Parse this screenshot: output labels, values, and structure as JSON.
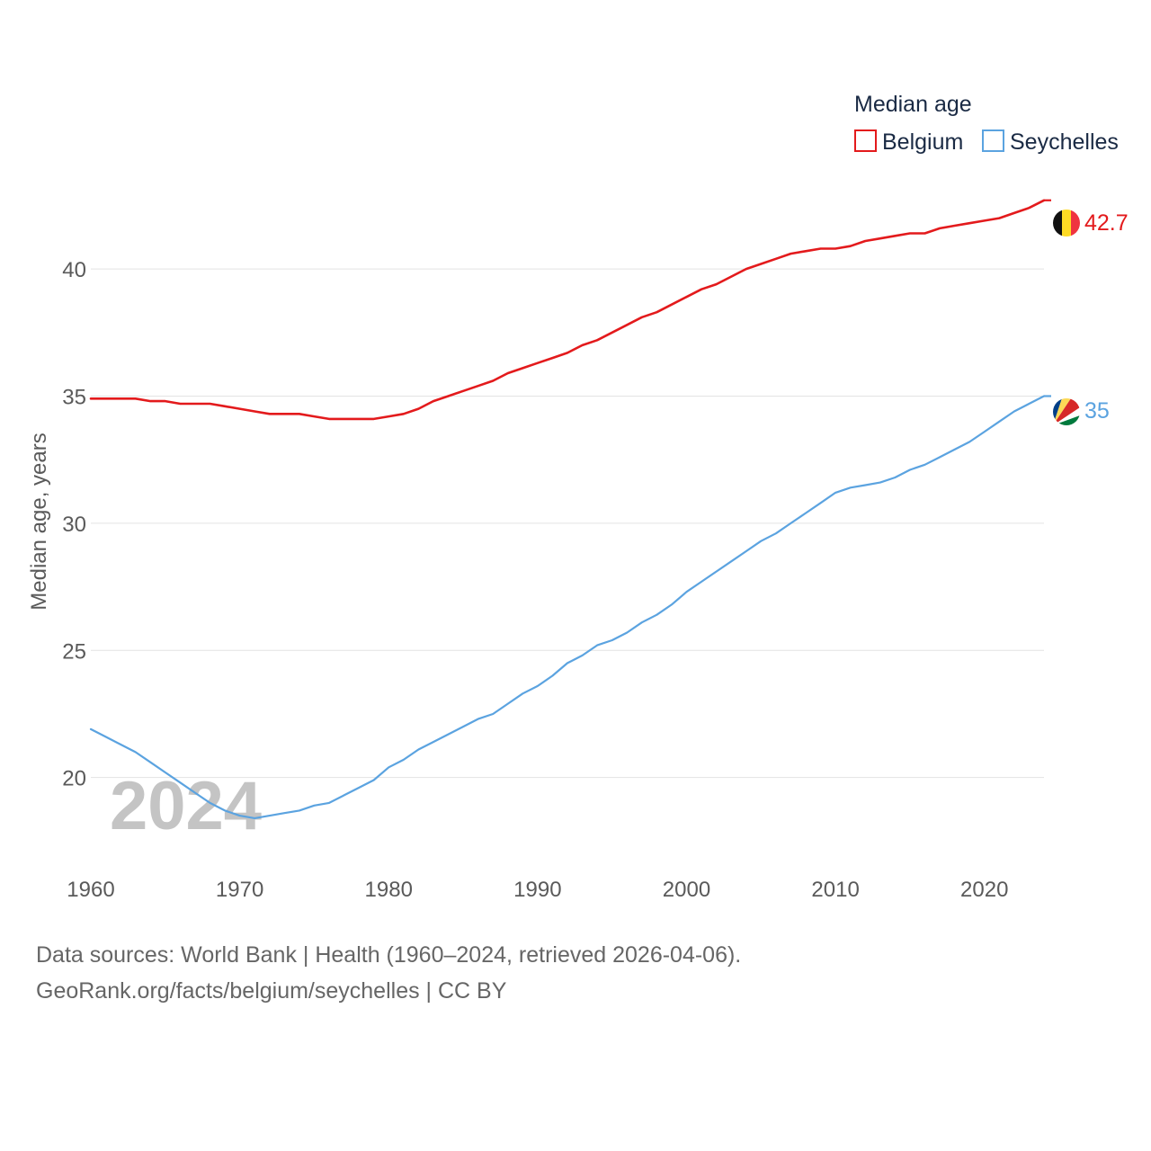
{
  "chart_data": {
    "type": "line",
    "title": "Median age",
    "ylabel": "Median age, years",
    "xlabel": "",
    "xlim": [
      1960,
      2024
    ],
    "ylim": [
      17.3,
      44
    ],
    "yticks": [
      20,
      25,
      30,
      35,
      40
    ],
    "xticks": [
      1960,
      1970,
      1980,
      1990,
      2000,
      2010,
      2020
    ],
    "grid": true,
    "legend_position": "top-right",
    "year_watermark": "2024",
    "x": [
      1960,
      1961,
      1962,
      1963,
      1964,
      1965,
      1966,
      1967,
      1968,
      1969,
      1970,
      1971,
      1972,
      1973,
      1974,
      1975,
      1976,
      1977,
      1978,
      1979,
      1980,
      1981,
      1982,
      1983,
      1984,
      1985,
      1986,
      1987,
      1988,
      1989,
      1990,
      1991,
      1992,
      1993,
      1994,
      1995,
      1996,
      1997,
      1998,
      1999,
      2000,
      2001,
      2002,
      2003,
      2004,
      2005,
      2006,
      2007,
      2008,
      2009,
      2010,
      2011,
      2012,
      2013,
      2014,
      2015,
      2016,
      2017,
      2018,
      2019,
      2020,
      2021,
      2022,
      2023,
      2024
    ],
    "series": [
      {
        "name": "Belgium",
        "color": "#e31a1c",
        "end_label": "42.7",
        "values": [
          34.9,
          34.9,
          34.9,
          34.9,
          34.8,
          34.8,
          34.7,
          34.7,
          34.7,
          34.6,
          34.5,
          34.4,
          34.3,
          34.3,
          34.3,
          34.2,
          34.1,
          34.1,
          34.1,
          34.1,
          34.2,
          34.3,
          34.5,
          34.8,
          35.0,
          35.2,
          35.4,
          35.6,
          35.9,
          36.1,
          36.3,
          36.5,
          36.7,
          37.0,
          37.2,
          37.5,
          37.8,
          38.1,
          38.3,
          38.6,
          38.9,
          39.2,
          39.4,
          39.7,
          40.0,
          40.2,
          40.4,
          40.6,
          40.7,
          40.8,
          40.8,
          40.9,
          41.1,
          41.2,
          41.3,
          41.4,
          41.4,
          41.6,
          41.7,
          41.8,
          41.9,
          42.0,
          42.2,
          42.4,
          42.7
        ]
      },
      {
        "name": "Seychelles",
        "color": "#5ba3e0",
        "end_label": "35",
        "values": [
          21.9,
          21.6,
          21.3,
          21.0,
          20.6,
          20.2,
          19.8,
          19.4,
          19.0,
          18.7,
          18.5,
          18.4,
          18.5,
          18.6,
          18.7,
          18.9,
          19.0,
          19.3,
          19.6,
          19.9,
          20.4,
          20.7,
          21.1,
          21.4,
          21.7,
          22.0,
          22.3,
          22.5,
          22.9,
          23.3,
          23.6,
          24.0,
          24.5,
          24.8,
          25.2,
          25.4,
          25.7,
          26.1,
          26.4,
          26.8,
          27.3,
          27.7,
          28.1,
          28.5,
          28.9,
          29.3,
          29.6,
          30.0,
          30.4,
          30.8,
          31.2,
          31.4,
          31.5,
          31.6,
          31.8,
          32.1,
          32.3,
          32.6,
          32.9,
          33.2,
          33.6,
          34.0,
          34.4,
          34.7,
          35.0
        ]
      }
    ]
  },
  "footer": {
    "sources": "Data sources: World Bank | Health (1960–2024, retrieved 2026-04-06).",
    "link": "GeoRank.org/facts/belgium/seychelles | CC BY"
  }
}
